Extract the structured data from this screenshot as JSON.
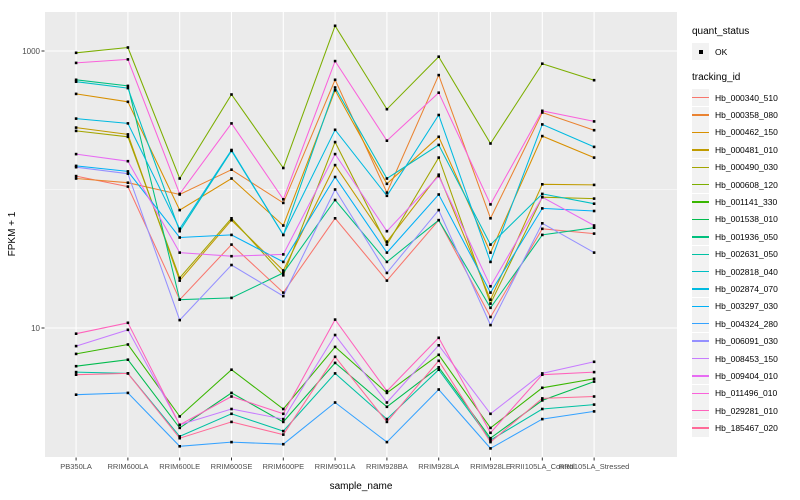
{
  "figure": {
    "background": "#FFFFFF",
    "panel_background": "#EBEBEB",
    "grid_color": "#FFFFFF",
    "tick_color": "#333333",
    "tick_label_color": "#4D4D4D"
  },
  "axes": {
    "x_title": "sample_name",
    "y_title": "FPKM + 1",
    "y_tick_labels": [
      "1000",
      "10"
    ]
  },
  "legend": {
    "quant_status_title": "quant_status",
    "quant_status_items": [
      "OK"
    ],
    "tracking_title": "tracking_id"
  },
  "chart_data": {
    "type": "line",
    "title": "",
    "xlabel": "sample_name",
    "ylabel": "FPKM + 1",
    "y_scale": "log10",
    "ylim": [
      1.15,
      1950
    ],
    "y_major_breaks": [
      10,
      1000
    ],
    "y_minor_breaks": [
      100
    ],
    "grid": true,
    "legend_position": "right",
    "marker": {
      "shape": "square",
      "color": "#000000",
      "size": 2.6,
      "quant_status": "OK"
    },
    "categories": [
      "PB350LA",
      "RRIM600LA",
      "RRIM600LE",
      "RRIM600SE",
      "RRIM600PE",
      "RRIM901LA",
      "RRIM928BA",
      "RRIM928LA",
      "RRIM928LE",
      "RRII105LA_Control",
      "RRII105LA_Stressed"
    ],
    "series": [
      {
        "tracking_id": "Hb_000340_510",
        "quant_status": "OK",
        "color": "#F8766D",
        "values": [
          125,
          105,
          16,
          40,
          18,
          62,
          22,
          60,
          12,
          52,
          48
        ]
      },
      {
        "tracking_id": "Hb_000358_080",
        "quant_status": "OK",
        "color": "#EA8331",
        "values": [
          120,
          112,
          92,
          139,
          80,
          620,
          95,
          670,
          62,
          360,
          268
        ]
      },
      {
        "tracking_id": "Hb_000462_150",
        "quant_status": "OK",
        "color": "#D89000",
        "values": [
          490,
          430,
          71,
          120,
          55,
          520,
          110,
          240,
          35,
          243,
          170
        ]
      },
      {
        "tracking_id": "Hb_000481_010",
        "quant_status": "OK",
        "color": "#C09B00",
        "values": [
          280,
          250,
          22,
          60,
          26,
          150,
          42,
          128,
          16,
          109,
          108
        ]
      },
      {
        "tracking_id": "Hb_000490_030",
        "quant_status": "OK",
        "color": "#A3A500",
        "values": [
          265,
          240,
          23,
          62,
          24,
          220,
          40,
          170,
          15,
          88,
          86
        ]
      },
      {
        "tracking_id": "Hb_000608_120",
        "quant_status": "OK",
        "color": "#7CAE00",
        "values": [
          970,
          1060,
          120,
          485,
          143,
          1520,
          380,
          910,
          215,
          810,
          615
        ]
      },
      {
        "tracking_id": "Hb_001141_330",
        "quant_status": "OK",
        "color": "#39B600",
        "values": [
          6.5,
          7.6,
          2.3,
          5.0,
          2.6,
          7.3,
          3.4,
          6.4,
          1.9,
          3.7,
          4.3
        ]
      },
      {
        "tracking_id": "Hb_001538_010",
        "quant_status": "OK",
        "color": "#00BB4E",
        "values": [
          5.3,
          5.9,
          1.9,
          3.4,
          2.1,
          5.6,
          2.7,
          5.2,
          1.6,
          3.0,
          4.1
        ]
      },
      {
        "tracking_id": "Hb_001936_050",
        "quant_status": "OK",
        "color": "#00BF7D",
        "values": [
          620,
          560,
          16,
          16.5,
          25,
          84,
          30,
          60,
          14,
          47,
          53
        ]
      },
      {
        "tracking_id": "Hb_002631_050",
        "quant_status": "OK",
        "color": "#00C1A3",
        "values": [
          4.8,
          4.7,
          1.65,
          2.4,
          1.8,
          4.7,
          2.2,
          5.0,
          1.55,
          2.6,
          2.8
        ]
      },
      {
        "tracking_id": "Hb_002818_040",
        "quant_status": "OK",
        "color": "#00BFC4",
        "values": [
          600,
          540,
          50,
          190,
          47,
          545,
          120,
          210,
          40,
          93,
          79
        ]
      },
      {
        "tracking_id": "Hb_002874_070",
        "quant_status": "OK",
        "color": "#00BAE0",
        "values": [
          325,
          300,
          52,
          193,
          47,
          270,
          90,
          345,
          30,
          295,
          203
        ]
      },
      {
        "tracking_id": "Hb_003297_030",
        "quant_status": "OK",
        "color": "#00B0F6",
        "values": [
          148,
          135,
          45,
          47,
          30,
          123,
          35,
          92,
          18,
          73,
          70
        ]
      },
      {
        "tracking_id": "Hb_004324_280",
        "quant_status": "OK",
        "color": "#35A2FF",
        "values": [
          3.3,
          3.4,
          1.4,
          1.5,
          1.45,
          2.9,
          1.5,
          3.6,
          1.35,
          2.2,
          2.5
        ]
      },
      {
        "tracking_id": "Hb_006091_030",
        "quant_status": "OK",
        "color": "#9590FF",
        "values": [
          145,
          130,
          11.4,
          28.5,
          17,
          100,
          25,
          71,
          10.5,
          57,
          35
        ]
      },
      {
        "tracking_id": "Hb_008453_150",
        "quant_status": "OK",
        "color": "#C77CFF",
        "values": [
          7.4,
          9.7,
          2.0,
          2.6,
          2.2,
          8.9,
          2.9,
          7.5,
          2.4,
          4.7,
          5.7
        ]
      },
      {
        "tracking_id": "Hb_009404_010",
        "quant_status": "OK",
        "color": "#E76BF3",
        "values": [
          180,
          160,
          35,
          33,
          34,
          180,
          50,
          125,
          20,
          88,
          55
        ]
      },
      {
        "tracking_id": "Hb_011496_010",
        "quant_status": "OK",
        "color": "#FA62DB",
        "values": [
          820,
          870,
          93,
          300,
          85,
          845,
          225,
          500,
          78,
          370,
          310
        ]
      },
      {
        "tracking_id": "Hb_029281_010",
        "quant_status": "OK",
        "color": "#FF62BC",
        "values": [
          9.1,
          10.9,
          2.0,
          3.2,
          2.4,
          11.5,
          3.5,
          8.5,
          1.75,
          4.6,
          4.8
        ]
      },
      {
        "tracking_id": "Hb_185467_020",
        "quant_status": "OK",
        "color": "#FF6A98",
        "values": [
          4.6,
          4.7,
          1.6,
          2.1,
          1.7,
          6.2,
          2.1,
          5.8,
          1.5,
          3.1,
          3.2
        ]
      }
    ]
  }
}
